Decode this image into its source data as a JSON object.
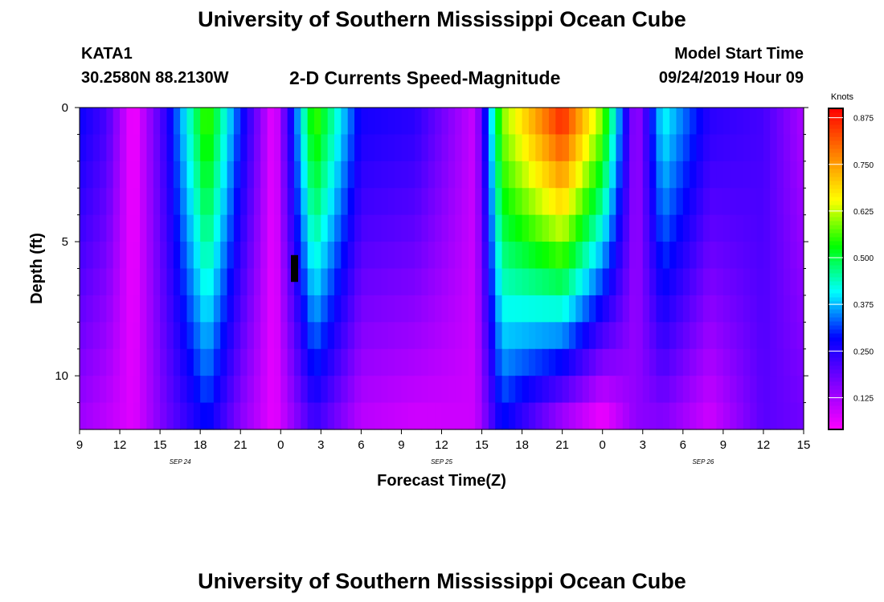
{
  "page": {
    "title_top": "University of Southern Mississippi Ocean Cube",
    "title_bottom": "University of Southern Mississippi Ocean Cube",
    "station_id": "KATA1",
    "station_coords": "30.2580N 88.2130W",
    "chart_subtitle": "2-D Currents Speed-Magnitude",
    "model_start_label": "Model Start Time",
    "model_start_value": "09/24/2019 Hour 09"
  },
  "chart_data": {
    "type": "heatmap",
    "title": "2-D Currents Speed-Magnitude",
    "xlabel": "Forecast Time(Z)",
    "ylabel": "Depth (ft)",
    "colorbar_label": "Knots",
    "xlim_hours": [
      0,
      54
    ],
    "ylim_depth_ft": [
      0,
      12
    ],
    "x_tick_labels": [
      "9",
      "12",
      "15",
      "18",
      "21",
      "0",
      "3",
      "6",
      "9",
      "12",
      "15",
      "18",
      "21",
      "0",
      "3",
      "6",
      "9",
      "12",
      "15"
    ],
    "x_ticks_hours": [
      0,
      3,
      6,
      9,
      12,
      15,
      18,
      21,
      24,
      27,
      30,
      33,
      36,
      39,
      42,
      45,
      48,
      51,
      54
    ],
    "date_labels": [
      {
        "text": "SEP 24",
        "hour": 7.5
      },
      {
        "text": "SEP 25",
        "hour": 27
      },
      {
        "text": "SEP 26",
        "hour": 46.5
      }
    ],
    "y_tick_labels": [
      "0",
      "5",
      "10"
    ],
    "y_ticks_ft": [
      0,
      5,
      10
    ],
    "y_minor_ticks_ft": [
      1,
      2,
      3,
      4,
      6,
      7,
      8,
      9,
      11
    ],
    "colorbar_ticks": [
      0.125,
      0.25,
      0.375,
      0.5,
      0.625,
      0.75,
      0.875
    ],
    "colorbar_tick_labels": [
      "0.125",
      "0.250",
      "0.375",
      "0.500",
      "0.625",
      "0.750",
      "0.875"
    ],
    "colorbar_range": [
      0.04,
      0.9
    ],
    "colormap": [
      "#ff00ff",
      "#8000ff",
      "#0000ff",
      "#00ffff",
      "#00ff00",
      "#ffff00",
      "#ff8000",
      "#ff0000"
    ],
    "speed_profiles_knots": [
      {
        "hour": 0,
        "surface": 0.28,
        "bottom": 0.13
      },
      {
        "hour": 2,
        "surface": 0.22,
        "bottom": 0.1
      },
      {
        "hour": 4,
        "surface": 0.04,
        "bottom": 0.07
      },
      {
        "hour": 6.5,
        "surface": 0.25,
        "bottom": 0.18
      },
      {
        "hour": 9.5,
        "surface": 0.58,
        "bottom": 0.28
      },
      {
        "hour": 12,
        "surface": 0.3,
        "bottom": 0.15
      },
      {
        "hour": 14.5,
        "surface": 0.05,
        "bottom": 0.06
      },
      {
        "hour": 17.5,
        "surface": 0.58,
        "bottom": 0.22
      },
      {
        "hour": 21,
        "surface": 0.27,
        "bottom": 0.1
      },
      {
        "hour": 25,
        "surface": 0.25,
        "bottom": 0.08
      },
      {
        "hour": 29.5,
        "surface": 0.09,
        "bottom": 0.09
      },
      {
        "hour": 31.5,
        "surface": 0.6,
        "bottom": 0.28
      },
      {
        "hour": 36,
        "surface": 0.88,
        "bottom": 0.1
      },
      {
        "hour": 39,
        "surface": 0.6,
        "bottom": 0.03
      },
      {
        "hour": 41.5,
        "surface": 0.12,
        "bottom": 0.15
      },
      {
        "hour": 43.5,
        "surface": 0.42,
        "bottom": 0.15
      },
      {
        "hour": 47,
        "surface": 0.25,
        "bottom": 0.08
      },
      {
        "hour": 51,
        "surface": 0.22,
        "bottom": 0.2
      },
      {
        "hour": 54,
        "surface": 0.12,
        "bottom": 0.18
      }
    ],
    "missing_data": [
      {
        "hour": 16,
        "depth_from_ft": 5.5,
        "depth_to_ft": 6.5
      }
    ]
  }
}
